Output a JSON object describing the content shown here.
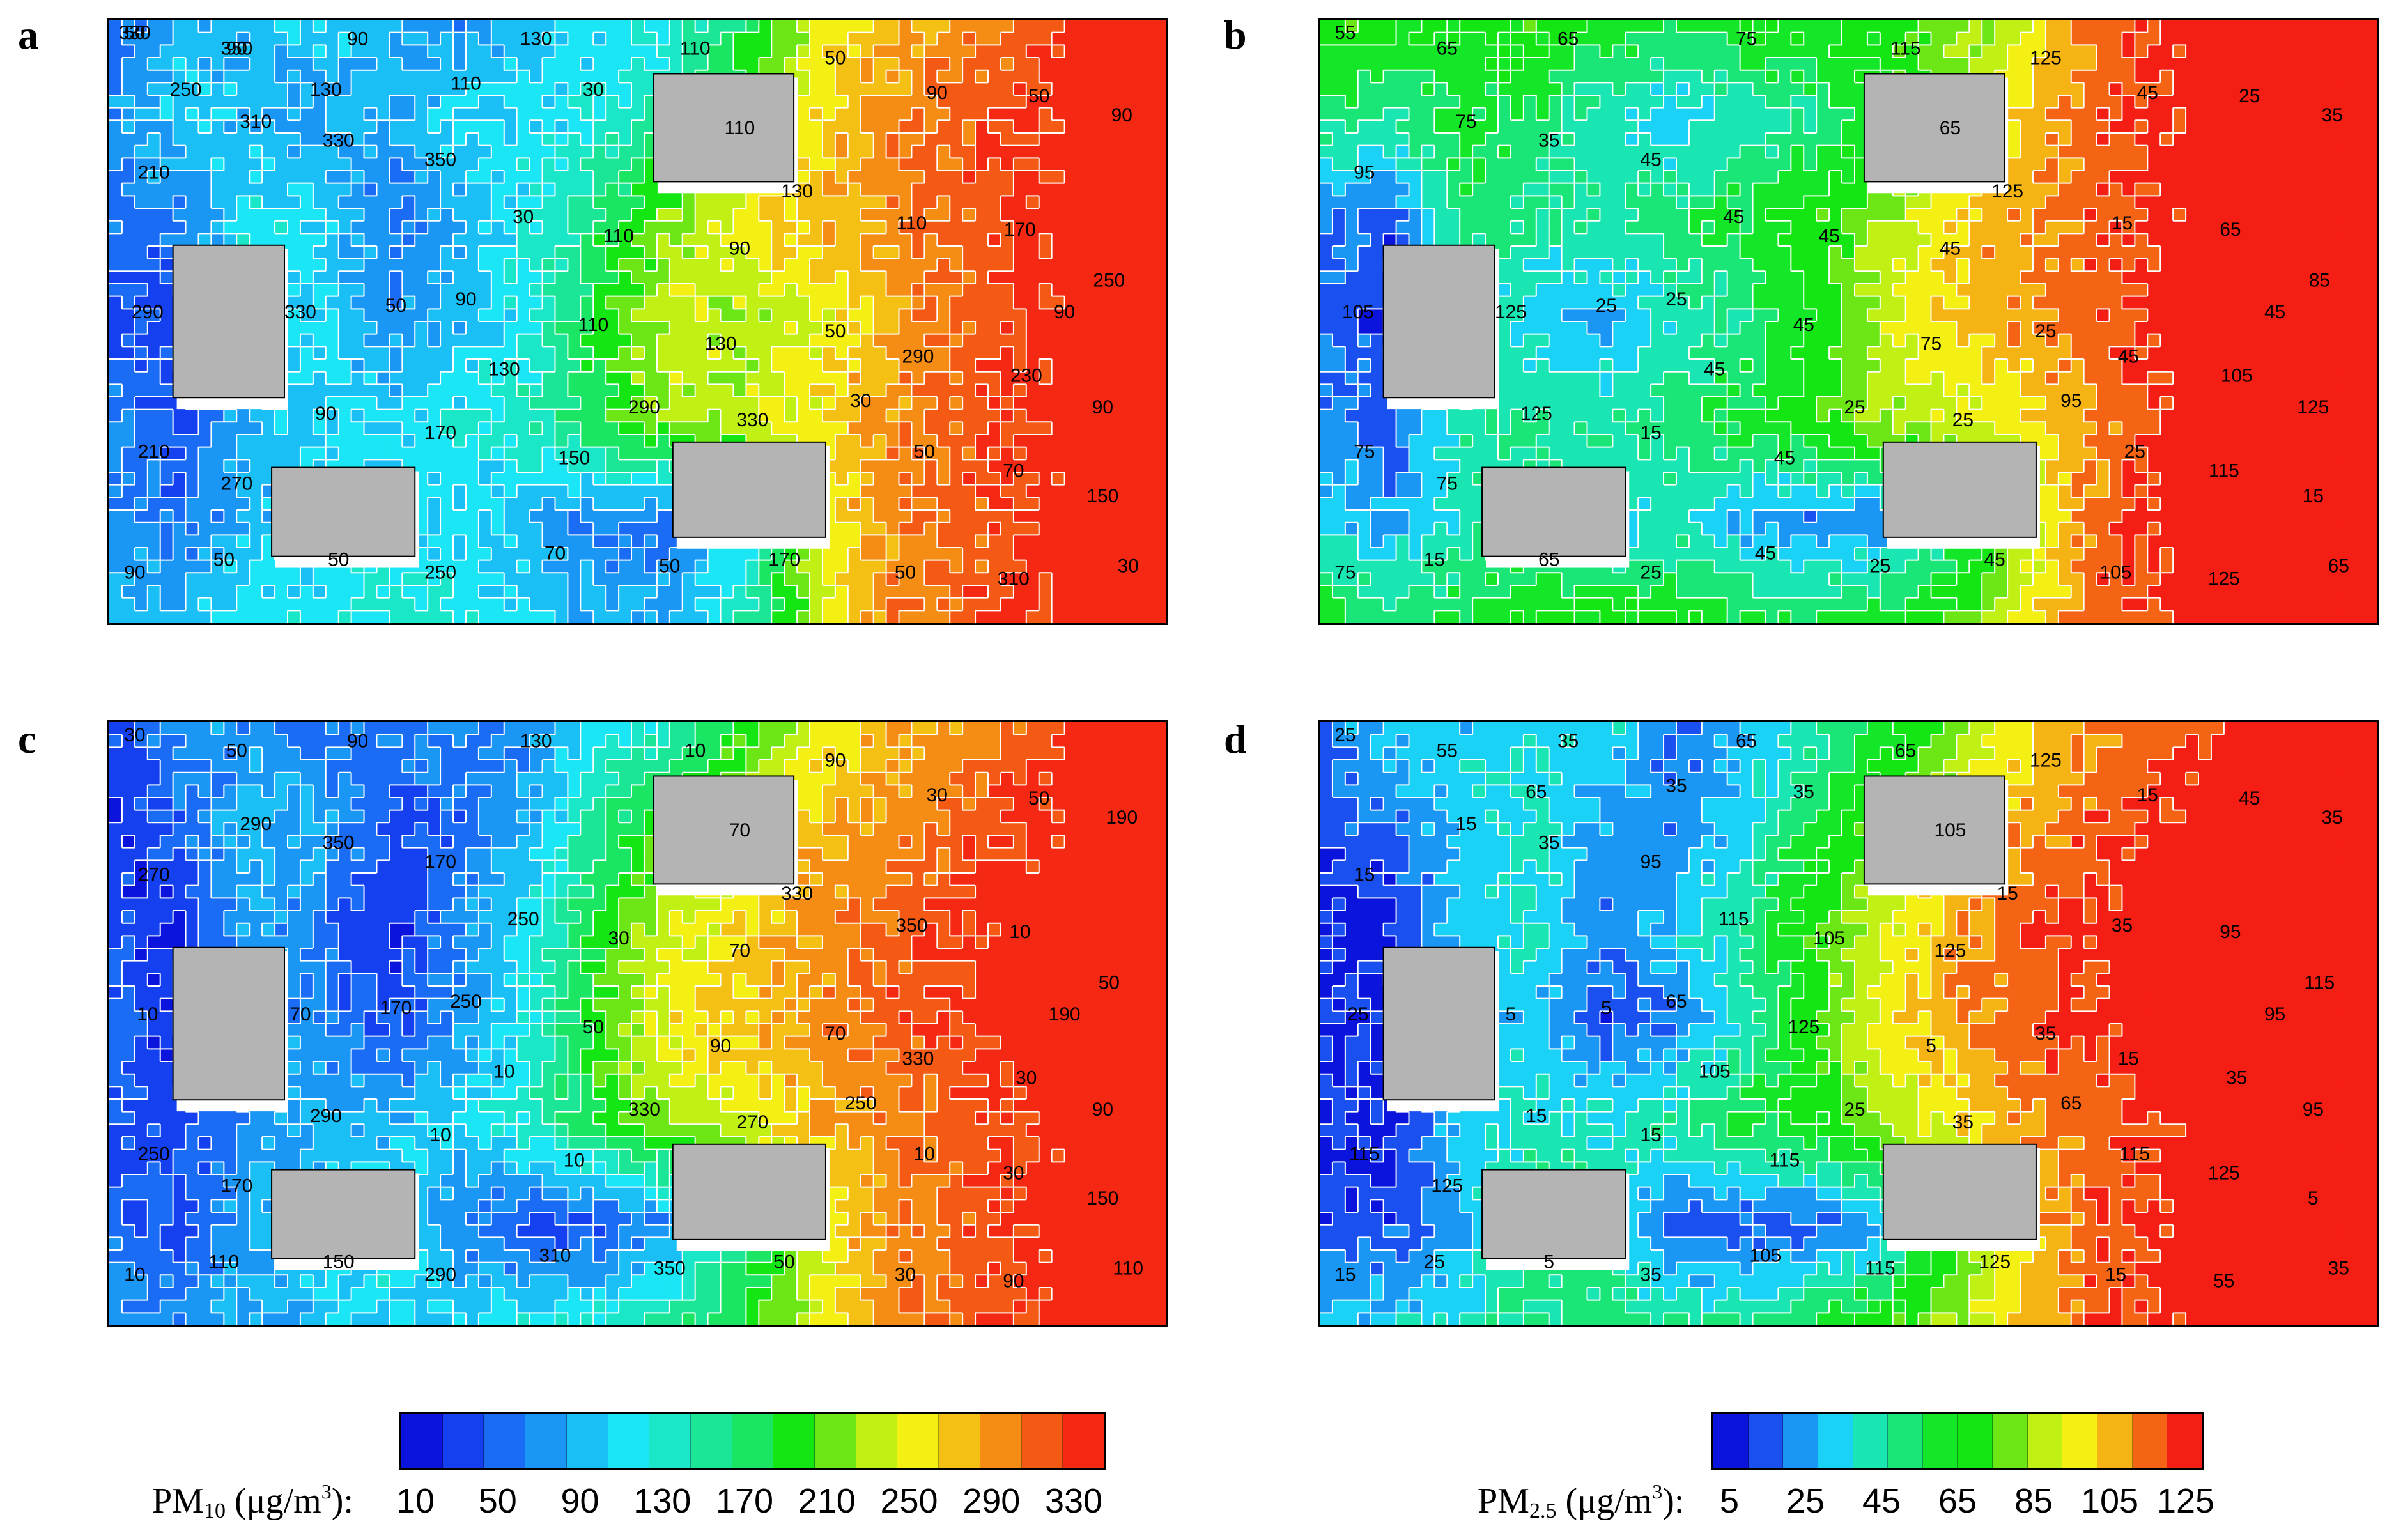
{
  "chart_data": [
    {
      "type": "heatmap",
      "panel": "a",
      "pollutant": "PM10",
      "grid": [
        [
          0.15,
          0.25,
          0.25,
          0.3,
          0.25,
          0.2,
          0.3,
          0.3,
          0.35,
          0.5,
          0.7,
          0.8,
          0.85,
          0.9,
          1.0,
          1.0
        ],
        [
          0.2,
          0.3,
          0.25,
          0.2,
          0.25,
          0.3,
          0.3,
          0.35,
          0.45,
          0.6,
          0.75,
          0.85,
          0.9,
          0.95,
          1.0,
          1.0
        ],
        [
          0.15,
          0.15,
          0.35,
          0.3,
          0.15,
          0.25,
          0.35,
          0.5,
          0.65,
          0.75,
          0.8,
          0.85,
          0.9,
          0.95,
          1.0,
          1.0
        ],
        [
          0.1,
          0.1,
          0.3,
          0.3,
          0.2,
          0.25,
          0.35,
          0.55,
          0.7,
          0.65,
          0.7,
          0.8,
          0.9,
          0.95,
          1.0,
          1.0
        ],
        [
          0.2,
          0.1,
          0.25,
          0.3,
          0.3,
          0.35,
          0.4,
          0.55,
          0.65,
          0.7,
          0.75,
          0.85,
          0.9,
          0.95,
          1.0,
          1.0
        ],
        [
          0.2,
          0.15,
          0.25,
          0.3,
          0.3,
          0.3,
          0.25,
          0.15,
          0.15,
          0.3,
          0.7,
          0.85,
          0.9,
          0.95,
          1.0,
          1.0
        ],
        [
          0.3,
          0.25,
          0.35,
          0.3,
          0.4,
          0.35,
          0.3,
          0.25,
          0.25,
          0.4,
          0.65,
          0.85,
          0.9,
          0.95,
          1.0,
          1.0
        ]
      ],
      "contour_labels": [
        "50",
        "90",
        "90",
        "130",
        "110",
        "50",
        "90",
        "50",
        "90",
        "210",
        "310",
        "330",
        "350",
        "30",
        "110",
        "90",
        "130",
        "110",
        "170",
        "250",
        "290",
        "330",
        "50",
        "90",
        "110",
        "130",
        "50",
        "290",
        "230",
        "90",
        "210",
        "270",
        "90",
        "170",
        "130",
        "150",
        "290",
        "330",
        "30",
        "50",
        "70",
        "150",
        "90",
        "50",
        "50",
        "250",
        "70",
        "50",
        "170",
        "50",
        "310",
        "30",
        "90",
        "110",
        "30",
        "110",
        "130",
        "250",
        "330",
        "350"
      ],
      "colorbar_id": "pm10"
    },
    {
      "type": "heatmap",
      "panel": "b",
      "pollutant": "PM2.5",
      "grid": [
        [
          0.55,
          0.55,
          0.5,
          0.55,
          0.5,
          0.45,
          0.5,
          0.5,
          0.55,
          0.6,
          0.7,
          0.9,
          0.95,
          1.0,
          1.0,
          1.0
        ],
        [
          0.4,
          0.35,
          0.45,
          0.4,
          0.3,
          0.25,
          0.3,
          0.35,
          0.5,
          0.65,
          0.8,
          0.9,
          0.95,
          1.0,
          1.0,
          1.0
        ],
        [
          0.15,
          0.1,
          0.4,
          0.35,
          0.35,
          0.4,
          0.45,
          0.55,
          0.65,
          0.8,
          0.85,
          0.9,
          0.95,
          1.0,
          1.0,
          1.0
        ],
        [
          0.1,
          0.1,
          0.35,
          0.25,
          0.2,
          0.3,
          0.35,
          0.5,
          0.7,
          0.8,
          0.85,
          0.9,
          0.95,
          1.0,
          1.0,
          1.0
        ],
        [
          0.2,
          0.1,
          0.35,
          0.35,
          0.35,
          0.4,
          0.45,
          0.55,
          0.65,
          0.7,
          0.75,
          0.85,
          0.95,
          1.0,
          1.0,
          1.0
        ],
        [
          0.25,
          0.2,
          0.3,
          0.4,
          0.25,
          0.3,
          0.2,
          0.15,
          0.15,
          0.35,
          0.65,
          0.9,
          0.95,
          1.0,
          1.0,
          1.0
        ],
        [
          0.5,
          0.4,
          0.45,
          0.5,
          0.55,
          0.5,
          0.45,
          0.45,
          0.5,
          0.55,
          0.75,
          0.9,
          0.95,
          1.0,
          1.0,
          1.0
        ]
      ],
      "contour_labels": [
        "55",
        "65",
        "65",
        "75",
        "115",
        "125",
        "45",
        "25",
        "35",
        "95",
        "75",
        "35",
        "45",
        "45",
        "45",
        "45",
        "125",
        "15",
        "65",
        "85",
        "105",
        "125",
        "25",
        "25",
        "45",
        "75",
        "25",
        "45",
        "105",
        "125",
        "75",
        "75",
        "125",
        "15",
        "45",
        "45",
        "25",
        "25",
        "95",
        "25",
        "115",
        "15",
        "75",
        "15",
        "65",
        "25",
        "45",
        "25",
        "45",
        "105",
        "125",
        "65",
        "45",
        "65"
      ],
      "colorbar_id": "pm25"
    },
    {
      "type": "heatmap",
      "panel": "c",
      "pollutant": "PM10",
      "grid": [
        [
          0.1,
          0.2,
          0.2,
          0.15,
          0.2,
          0.15,
          0.2,
          0.3,
          0.4,
          0.55,
          0.7,
          0.8,
          0.85,
          0.9,
          1.0,
          1.0
        ],
        [
          0.05,
          0.15,
          0.25,
          0.25,
          0.1,
          0.15,
          0.25,
          0.45,
          0.6,
          0.7,
          0.8,
          0.85,
          0.9,
          0.95,
          1.0,
          1.0
        ],
        [
          0.1,
          0.05,
          0.25,
          0.15,
          0.05,
          0.2,
          0.35,
          0.55,
          0.7,
          0.75,
          0.85,
          0.9,
          0.95,
          1.0,
          1.0,
          1.0
        ],
        [
          0.15,
          0.05,
          0.2,
          0.2,
          0.1,
          0.2,
          0.35,
          0.6,
          0.75,
          0.8,
          0.85,
          0.9,
          0.95,
          1.0,
          1.0,
          1.0
        ],
        [
          0.1,
          0.1,
          0.2,
          0.25,
          0.25,
          0.3,
          0.4,
          0.55,
          0.65,
          0.7,
          0.8,
          0.85,
          0.9,
          0.95,
          1.0,
          1.0
        ],
        [
          0.15,
          0.1,
          0.25,
          0.3,
          0.35,
          0.15,
          0.1,
          0.1,
          0.2,
          0.45,
          0.7,
          0.85,
          0.9,
          0.95,
          1.0,
          1.0
        ],
        [
          0.2,
          0.2,
          0.25,
          0.25,
          0.3,
          0.3,
          0.35,
          0.4,
          0.45,
          0.55,
          0.7,
          0.85,
          0.9,
          0.95,
          1.0,
          1.0
        ]
      ],
      "contour_labels": [
        "30",
        "50",
        "90",
        "130",
        "10",
        "90",
        "30",
        "50",
        "190",
        "270",
        "290",
        "350",
        "170",
        "250",
        "30",
        "70",
        "330",
        "350",
        "10",
        "50",
        "10",
        "70",
        "170",
        "250",
        "50",
        "90",
        "70",
        "330",
        "30",
        "90",
        "250",
        "170",
        "290",
        "10",
        "10",
        "10",
        "330",
        "270",
        "250",
        "10",
        "30",
        "150",
        "10",
        "110",
        "150",
        "290",
        "310",
        "350",
        "50",
        "30",
        "90",
        "110",
        "190",
        "70"
      ],
      "colorbar_id": "pm10"
    },
    {
      "type": "heatmap",
      "panel": "d",
      "pollutant": "PM2.5",
      "grid": [
        [
          0.15,
          0.25,
          0.25,
          0.25,
          0.3,
          0.15,
          0.2,
          0.3,
          0.45,
          0.6,
          0.75,
          0.85,
          0.9,
          0.95,
          1.0,
          1.0
        ],
        [
          0.1,
          0.15,
          0.25,
          0.3,
          0.2,
          0.15,
          0.25,
          0.45,
          0.6,
          0.75,
          0.85,
          0.9,
          0.95,
          1.0,
          1.0,
          1.0
        ],
        [
          0.05,
          0.05,
          0.25,
          0.3,
          0.15,
          0.25,
          0.35,
          0.55,
          0.7,
          0.85,
          0.9,
          0.95,
          1.0,
          1.0,
          1.0,
          1.0
        ],
        [
          0.1,
          0.05,
          0.2,
          0.25,
          0.1,
          0.15,
          0.3,
          0.55,
          0.75,
          0.85,
          0.9,
          0.95,
          1.0,
          1.0,
          1.0,
          1.0
        ],
        [
          0.05,
          0.05,
          0.25,
          0.3,
          0.3,
          0.35,
          0.45,
          0.5,
          0.65,
          0.75,
          0.85,
          0.9,
          0.95,
          1.0,
          1.0,
          1.0
        ],
        [
          0.1,
          0.1,
          0.2,
          0.4,
          0.35,
          0.1,
          0.1,
          0.1,
          0.2,
          0.55,
          0.8,
          0.9,
          0.95,
          1.0,
          1.0,
          1.0
        ],
        [
          0.25,
          0.25,
          0.3,
          0.35,
          0.4,
          0.35,
          0.35,
          0.45,
          0.55,
          0.65,
          0.8,
          0.9,
          0.95,
          1.0,
          1.0,
          1.0
        ]
      ],
      "contour_labels": [
        "25",
        "55",
        "35",
        "65",
        "65",
        "125",
        "15",
        "45",
        "35",
        "15",
        "15",
        "35",
        "95",
        "115",
        "105",
        "125",
        "15",
        "35",
        "95",
        "115",
        "25",
        "5",
        "5",
        "65",
        "125",
        "5",
        "35",
        "15",
        "35",
        "95",
        "115",
        "125",
        "15",
        "15",
        "105",
        "115",
        "25",
        "35",
        "65",
        "115",
        "125",
        "5",
        "15",
        "25",
        "5",
        "35",
        "105",
        "115",
        "125",
        "15",
        "55",
        "35",
        "95",
        "105",
        "35",
        "35",
        "65"
      ],
      "colorbar_id": "pm25"
    }
  ],
  "colorbars": {
    "pm10": {
      "label_main": "PM",
      "label_sub": "10",
      "label_unit": " (μg/m",
      "label_sup": "3",
      "label_end": "):",
      "ticks": [
        "10",
        "50",
        "90",
        "130",
        "170",
        "210",
        "250",
        "290",
        "330"
      ],
      "min": 10,
      "max": 350,
      "colors": [
        "#0a14dc",
        "#1440f0",
        "#1a6cf5",
        "#1a96f5",
        "#1ac0f5",
        "#1ae6f5",
        "#1ae6c8",
        "#1ae696",
        "#1ae664",
        "#14e614",
        "#6ce614",
        "#c0f014",
        "#f5f014",
        "#f5c014",
        "#f58c14",
        "#f55a14",
        "#f52814"
      ]
    },
    "pm25": {
      "label_main": "PM",
      "label_sub": "2.5",
      "label_unit": " (μg/m",
      "label_sup": "3",
      "label_end": "):",
      "ticks": [
        "5",
        "25",
        "45",
        "65",
        "85",
        "105",
        "125"
      ],
      "min": 5,
      "max": 125,
      "colors": [
        "#0a14dc",
        "#1a50f0",
        "#1a96f5",
        "#1ad2f5",
        "#1ae6b4",
        "#1ae678",
        "#14e628",
        "#14e614",
        "#6ce614",
        "#c0f014",
        "#f5f014",
        "#f5b414",
        "#f56414",
        "#f51e14"
      ]
    }
  },
  "panel_letters": [
    "a",
    "b",
    "c",
    "d"
  ]
}
